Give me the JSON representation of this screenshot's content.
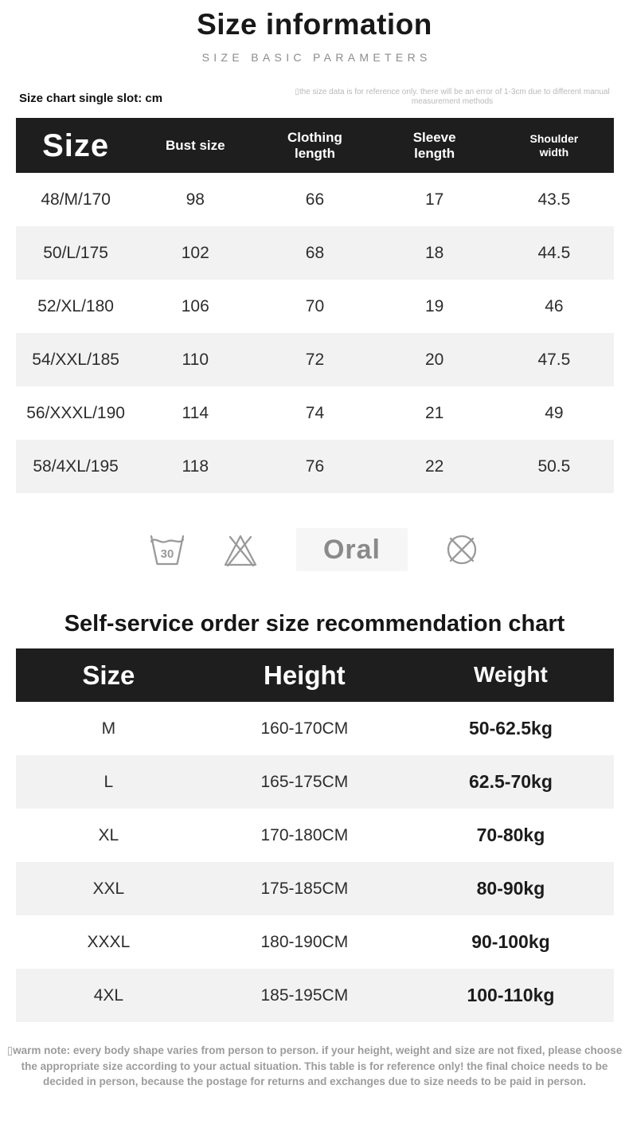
{
  "header": {
    "title": "Size information",
    "subtitle": "SIZE BASIC PARAMETERS",
    "unit_note": "Size chart single slot: cm",
    "disclaimer": "▯the size data is for reference only. there will be an error of 1-3cm due to different manual measurement methods"
  },
  "size_table": {
    "headers": [
      "Size",
      "Bust size",
      "Clothing\nlength",
      "Sleeve\nlength",
      "Shoulder\nwidth"
    ],
    "rows": [
      [
        "48/M/170",
        "98",
        "66",
        "17",
        "43.5"
      ],
      [
        "50/L/175",
        "102",
        "68",
        "18",
        "44.5"
      ],
      [
        "52/XL/180",
        "106",
        "70",
        "19",
        "46"
      ],
      [
        "54/XXL/185",
        "110",
        "72",
        "20",
        "47.5"
      ],
      [
        "56/XXXL/190",
        "114",
        "74",
        "21",
        "49"
      ],
      [
        "58/4XL/195",
        "118",
        "76",
        "22",
        "50.5"
      ]
    ]
  },
  "care": {
    "wash_temperature": "30",
    "label": "Oral",
    "icons": [
      "wash-30c-icon",
      "do-not-bleach-icon",
      "do-not-dryclean-icon"
    ]
  },
  "recommendation": {
    "heading": "Self-service order size recommendation chart",
    "headers": [
      "Size",
      "Height",
      "Weight"
    ],
    "rows": [
      [
        "M",
        "160-170CM",
        "50-62.5kg"
      ],
      [
        "L",
        "165-175CM",
        "62.5-70kg"
      ],
      [
        "XL",
        "170-180CM",
        "70-80kg"
      ],
      [
        "XXL",
        "175-185CM",
        "80-90kg"
      ],
      [
        "XXXL",
        "180-190CM",
        "90-100kg"
      ],
      [
        "4XL",
        "185-195CM",
        "100-110kg"
      ]
    ]
  },
  "footer": {
    "warm_note": "▯warm note: every body shape varies from person to person. if your height, weight and size are not fixed, please choose the appropriate size according to your actual situation. This table is for reference only! the final choice needs to be decided in person, because the postage for returns and exchanges due to size needs to be paid in person."
  },
  "colors": {
    "table_header_bg": "#1e1e1e",
    "table_header_text": "#ffffff",
    "row_stripe": "#f2f2f2",
    "cell_text": "#2d2d2d",
    "subtitle_gray": "#8c8c8c",
    "disclaimer_gray": "#b9b9b9",
    "warm_note_gray": "#9c9c9c",
    "care_icon_gray": "#9a9a9a",
    "care_label_bg": "#f6f6f6"
  }
}
